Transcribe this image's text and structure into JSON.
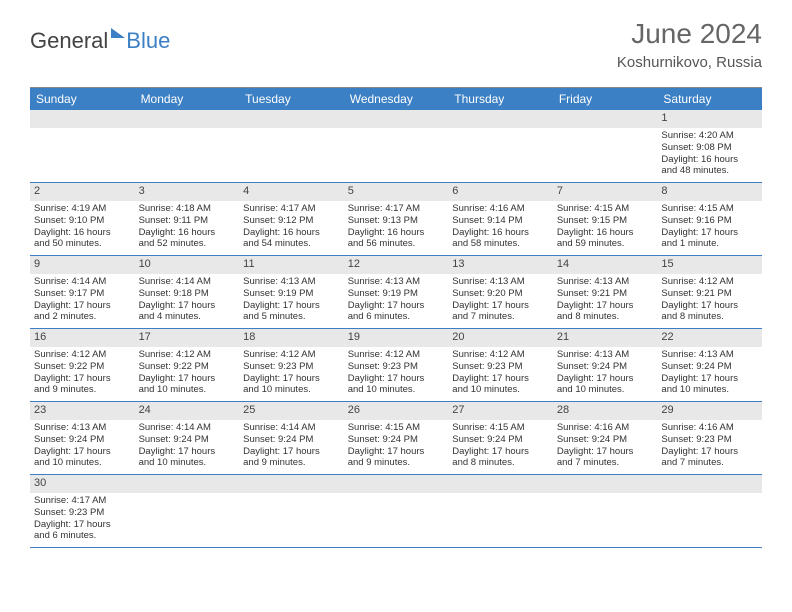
{
  "brand": {
    "part1": "General",
    "part2": "Blue"
  },
  "title": "June 2024",
  "location": "Koshurnikovo, Russia",
  "colors": {
    "header_bg": "#3b7fc4",
    "daynum_bg": "#e8e8e8",
    "border": "#3b7fc4"
  },
  "dow": [
    "Sunday",
    "Monday",
    "Tuesday",
    "Wednesday",
    "Thursday",
    "Friday",
    "Saturday"
  ],
  "weeks": [
    [
      null,
      null,
      null,
      null,
      null,
      null,
      {
        "n": "1",
        "sr": "Sunrise: 4:20 AM",
        "ss": "Sunset: 9:08 PM",
        "dl1": "Daylight: 16 hours",
        "dl2": "and 48 minutes."
      }
    ],
    [
      {
        "n": "2",
        "sr": "Sunrise: 4:19 AM",
        "ss": "Sunset: 9:10 PM",
        "dl1": "Daylight: 16 hours",
        "dl2": "and 50 minutes."
      },
      {
        "n": "3",
        "sr": "Sunrise: 4:18 AM",
        "ss": "Sunset: 9:11 PM",
        "dl1": "Daylight: 16 hours",
        "dl2": "and 52 minutes."
      },
      {
        "n": "4",
        "sr": "Sunrise: 4:17 AM",
        "ss": "Sunset: 9:12 PM",
        "dl1": "Daylight: 16 hours",
        "dl2": "and 54 minutes."
      },
      {
        "n": "5",
        "sr": "Sunrise: 4:17 AM",
        "ss": "Sunset: 9:13 PM",
        "dl1": "Daylight: 16 hours",
        "dl2": "and 56 minutes."
      },
      {
        "n": "6",
        "sr": "Sunrise: 4:16 AM",
        "ss": "Sunset: 9:14 PM",
        "dl1": "Daylight: 16 hours",
        "dl2": "and 58 minutes."
      },
      {
        "n": "7",
        "sr": "Sunrise: 4:15 AM",
        "ss": "Sunset: 9:15 PM",
        "dl1": "Daylight: 16 hours",
        "dl2": "and 59 minutes."
      },
      {
        "n": "8",
        "sr": "Sunrise: 4:15 AM",
        "ss": "Sunset: 9:16 PM",
        "dl1": "Daylight: 17 hours",
        "dl2": "and 1 minute."
      }
    ],
    [
      {
        "n": "9",
        "sr": "Sunrise: 4:14 AM",
        "ss": "Sunset: 9:17 PM",
        "dl1": "Daylight: 17 hours",
        "dl2": "and 2 minutes."
      },
      {
        "n": "10",
        "sr": "Sunrise: 4:14 AM",
        "ss": "Sunset: 9:18 PM",
        "dl1": "Daylight: 17 hours",
        "dl2": "and 4 minutes."
      },
      {
        "n": "11",
        "sr": "Sunrise: 4:13 AM",
        "ss": "Sunset: 9:19 PM",
        "dl1": "Daylight: 17 hours",
        "dl2": "and 5 minutes."
      },
      {
        "n": "12",
        "sr": "Sunrise: 4:13 AM",
        "ss": "Sunset: 9:19 PM",
        "dl1": "Daylight: 17 hours",
        "dl2": "and 6 minutes."
      },
      {
        "n": "13",
        "sr": "Sunrise: 4:13 AM",
        "ss": "Sunset: 9:20 PM",
        "dl1": "Daylight: 17 hours",
        "dl2": "and 7 minutes."
      },
      {
        "n": "14",
        "sr": "Sunrise: 4:13 AM",
        "ss": "Sunset: 9:21 PM",
        "dl1": "Daylight: 17 hours",
        "dl2": "and 8 minutes."
      },
      {
        "n": "15",
        "sr": "Sunrise: 4:12 AM",
        "ss": "Sunset: 9:21 PM",
        "dl1": "Daylight: 17 hours",
        "dl2": "and 8 minutes."
      }
    ],
    [
      {
        "n": "16",
        "sr": "Sunrise: 4:12 AM",
        "ss": "Sunset: 9:22 PM",
        "dl1": "Daylight: 17 hours",
        "dl2": "and 9 minutes."
      },
      {
        "n": "17",
        "sr": "Sunrise: 4:12 AM",
        "ss": "Sunset: 9:22 PM",
        "dl1": "Daylight: 17 hours",
        "dl2": "and 10 minutes."
      },
      {
        "n": "18",
        "sr": "Sunrise: 4:12 AM",
        "ss": "Sunset: 9:23 PM",
        "dl1": "Daylight: 17 hours",
        "dl2": "and 10 minutes."
      },
      {
        "n": "19",
        "sr": "Sunrise: 4:12 AM",
        "ss": "Sunset: 9:23 PM",
        "dl1": "Daylight: 17 hours",
        "dl2": "and 10 minutes."
      },
      {
        "n": "20",
        "sr": "Sunrise: 4:12 AM",
        "ss": "Sunset: 9:23 PM",
        "dl1": "Daylight: 17 hours",
        "dl2": "and 10 minutes."
      },
      {
        "n": "21",
        "sr": "Sunrise: 4:13 AM",
        "ss": "Sunset: 9:24 PM",
        "dl1": "Daylight: 17 hours",
        "dl2": "and 10 minutes."
      },
      {
        "n": "22",
        "sr": "Sunrise: 4:13 AM",
        "ss": "Sunset: 9:24 PM",
        "dl1": "Daylight: 17 hours",
        "dl2": "and 10 minutes."
      }
    ],
    [
      {
        "n": "23",
        "sr": "Sunrise: 4:13 AM",
        "ss": "Sunset: 9:24 PM",
        "dl1": "Daylight: 17 hours",
        "dl2": "and 10 minutes."
      },
      {
        "n": "24",
        "sr": "Sunrise: 4:14 AM",
        "ss": "Sunset: 9:24 PM",
        "dl1": "Daylight: 17 hours",
        "dl2": "and 10 minutes."
      },
      {
        "n": "25",
        "sr": "Sunrise: 4:14 AM",
        "ss": "Sunset: 9:24 PM",
        "dl1": "Daylight: 17 hours",
        "dl2": "and 9 minutes."
      },
      {
        "n": "26",
        "sr": "Sunrise: 4:15 AM",
        "ss": "Sunset: 9:24 PM",
        "dl1": "Daylight: 17 hours",
        "dl2": "and 9 minutes."
      },
      {
        "n": "27",
        "sr": "Sunrise: 4:15 AM",
        "ss": "Sunset: 9:24 PM",
        "dl1": "Daylight: 17 hours",
        "dl2": "and 8 minutes."
      },
      {
        "n": "28",
        "sr": "Sunrise: 4:16 AM",
        "ss": "Sunset: 9:24 PM",
        "dl1": "Daylight: 17 hours",
        "dl2": "and 7 minutes."
      },
      {
        "n": "29",
        "sr": "Sunrise: 4:16 AM",
        "ss": "Sunset: 9:23 PM",
        "dl1": "Daylight: 17 hours",
        "dl2": "and 7 minutes."
      }
    ],
    [
      {
        "n": "30",
        "sr": "Sunrise: 4:17 AM",
        "ss": "Sunset: 9:23 PM",
        "dl1": "Daylight: 17 hours",
        "dl2": "and 6 minutes."
      },
      null,
      null,
      null,
      null,
      null,
      null
    ]
  ]
}
